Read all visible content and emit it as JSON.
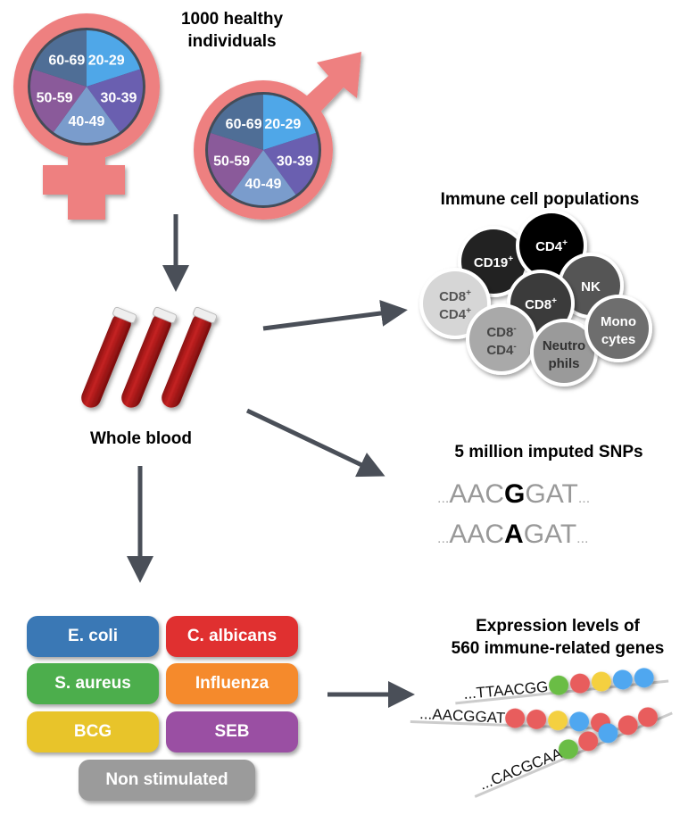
{
  "cohort": {
    "title_line1": "1000 healthy",
    "title_line2": "individuals",
    "age_groups": [
      "20-29",
      "30-39",
      "40-49",
      "50-59",
      "60-69"
    ],
    "age_colors": [
      "#4fa7e8",
      "#6a5fb0",
      "#7a9ccc",
      "#8a5a9a",
      "#4f6e96"
    ],
    "symbol_color": "#ee8080",
    "female_icon": "female-symbol-icon",
    "male_icon": "male-symbol-icon"
  },
  "blood": {
    "label": "Whole blood",
    "icon": "blood-tubes-icon"
  },
  "immune": {
    "title": "Immune cell populations",
    "cells": [
      {
        "label": "CD19",
        "sup": "+",
        "fill": "#222222",
        "text": "#ffffff"
      },
      {
        "label": "CD4",
        "sup": "+",
        "fill": "#050505",
        "text": "#ffffff"
      },
      {
        "label": "NK",
        "sup": "",
        "fill": "#555555",
        "text": "#ffffff"
      },
      {
        "label": "CD8",
        "sup": "+",
        "fill": "#3a3a3a",
        "text": "#ffffff"
      },
      {
        "label": "CD8",
        "sup": "+",
        "label2": "CD4",
        "sup2": "+",
        "fill": "#d6d6d6",
        "text": "#555555"
      },
      {
        "label": "CD8",
        "sup": "-",
        "label2": "CD4",
        "sup2": "-",
        "fill": "#a9a9a9",
        "text": "#444444"
      },
      {
        "label": "Neutro",
        "sup": "",
        "label2": "phils",
        "sup2": "",
        "fill": "#9a9a9a",
        "text": "#333333"
      },
      {
        "label": "Mono",
        "sup": "",
        "label2": "cytes",
        "sup2": "",
        "fill": "#6e6e6e",
        "text": "#ffffff"
      }
    ]
  },
  "snps": {
    "title": "5 million imputed SNPs",
    "line1": {
      "pre": "AAC",
      "alt": "G",
      "post": "GAT"
    },
    "line2": {
      "pre": "AAC",
      "alt": "A",
      "post": "GAT"
    },
    "ellipsis": "..."
  },
  "stimuli": {
    "items": [
      {
        "label": "E. coli",
        "color": "#3a78b5"
      },
      {
        "label": "C. albicans",
        "color": "#e03030"
      },
      {
        "label": "S. aureus",
        "color": "#4cae4c"
      },
      {
        "label": "Influenza",
        "color": "#f58a2c"
      },
      {
        "label": "BCG",
        "color": "#e8c42a"
      },
      {
        "label": "SEB",
        "color": "#9a4fa3"
      },
      {
        "label": "Non stimulated",
        "color": "#9b9b9b"
      }
    ]
  },
  "expression": {
    "title_line1": "Expression levels of",
    "title_line2": "560 immune-related genes",
    "strings": [
      {
        "seq": "...TTAACGG",
        "beads": [
          "#6bbd45",
          "#e85d5d",
          "#f4d03f",
          "#4fa7f0",
          "#4fa7f0"
        ]
      },
      {
        "seq": "...AACGGAT",
        "beads": [
          "#e85d5d",
          "#e85d5d",
          "#f4d03f",
          "#4fa7f0",
          "#e85d5d"
        ]
      },
      {
        "seq": "...CACGCAA",
        "beads": [
          "#6bbd45",
          "#e85d5d",
          "#4fa7f0",
          "#e85d5d",
          "#e85d5d"
        ]
      }
    ]
  }
}
